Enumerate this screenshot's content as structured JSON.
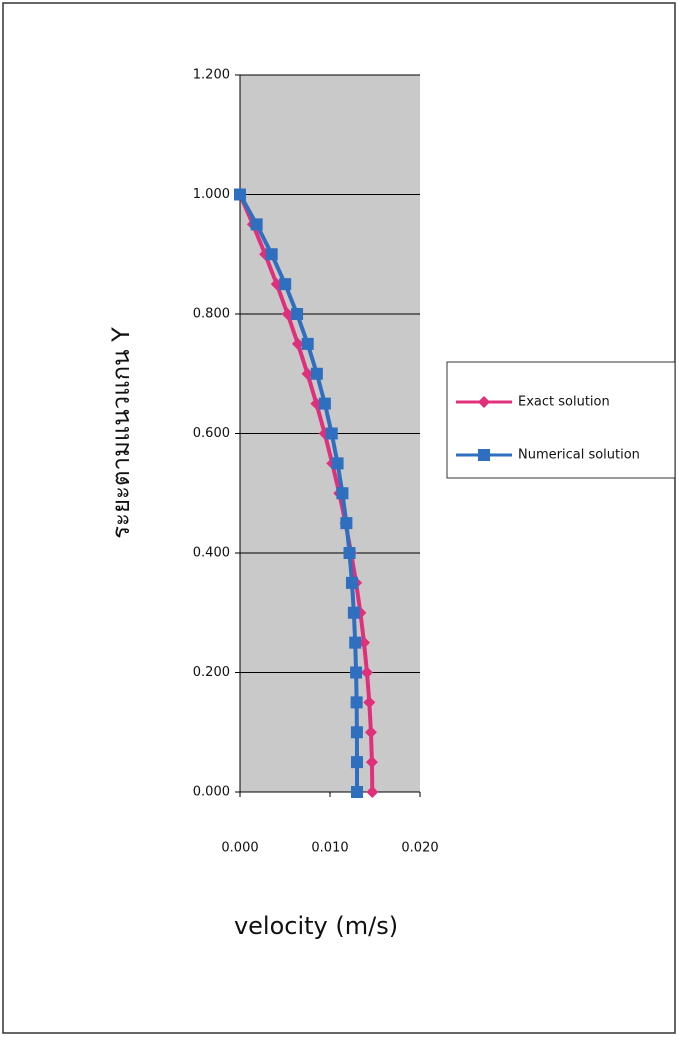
{
  "chart_data": {
    "type": "line",
    "x_label": "velocity (m/s)",
    "y_label": "ระยะตามแนวแกน Y",
    "xlim": [
      0,
      0.02
    ],
    "xticks": [
      {
        "value": 0,
        "label": "0.000"
      },
      {
        "value": 0.01,
        "label": "0.010"
      },
      {
        "value": 0.02,
        "label": "0.020"
      }
    ],
    "ylim": [
      0,
      1.2
    ],
    "yticks": [
      {
        "value": 0,
        "label": "0.000"
      },
      {
        "value": 0.2,
        "label": "0.200"
      },
      {
        "value": 0.4,
        "label": "0.400"
      },
      {
        "value": 0.6,
        "label": "0.600"
      },
      {
        "value": 0.8,
        "label": "0.800"
      },
      {
        "value": 1.0,
        "label": "1.000"
      },
      {
        "value": 1.2,
        "label": "1.200"
      }
    ],
    "grid": true,
    "legend": "right",
    "series": [
      {
        "name": "Exact solution",
        "color": "#e0307c",
        "marker": "diamond",
        "x": [
          0.0147,
          0.01466,
          0.01455,
          0.01437,
          0.01411,
          0.01378,
          0.01338,
          0.0129,
          0.01235,
          0.01172,
          0.01103,
          0.01025,
          0.00941,
          0.00849,
          0.0075,
          0.00643,
          0.00529,
          0.00408,
          0.00279,
          0.00143,
          0
        ],
        "y": [
          0,
          0.05,
          0.1,
          0.15,
          0.2,
          0.25,
          0.3,
          0.35,
          0.4,
          0.45,
          0.5,
          0.55,
          0.6,
          0.65,
          0.7,
          0.75,
          0.8,
          0.85,
          0.9,
          0.95,
          1.0
        ]
      },
      {
        "name": "Numerical solution",
        "color": "#2f6fc0",
        "marker": "square",
        "x": [
          0.013,
          0.013,
          0.01299,
          0.01296,
          0.0129,
          0.0128,
          0.01265,
          0.01244,
          0.01217,
          0.01182,
          0.01138,
          0.01084,
          0.01019,
          0.00943,
          0.00854,
          0.00752,
          0.00634,
          0.00502,
          0.00352,
          0.00185,
          0
        ],
        "y": [
          0,
          0.05,
          0.1,
          0.15,
          0.2,
          0.25,
          0.3,
          0.35,
          0.4,
          0.45,
          0.5,
          0.55,
          0.6,
          0.65,
          0.7,
          0.75,
          0.8,
          0.85,
          0.9,
          0.95,
          1.0
        ]
      }
    ]
  }
}
